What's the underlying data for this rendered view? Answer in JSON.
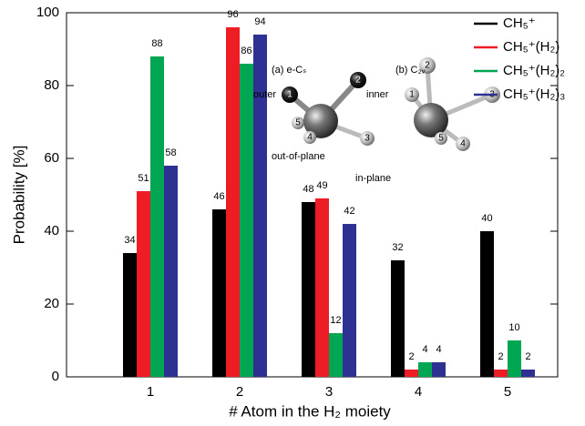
{
  "chart_data": {
    "type": "bar",
    "x_label": "# Atom in the H₂ moiety",
    "y_label": "Probability [%]",
    "categories": [
      "1",
      "2",
      "3",
      "4",
      "5"
    ],
    "series": [
      {
        "name": "CH₅⁺",
        "color": "#000000",
        "values": [
          34,
          46,
          48,
          32,
          40
        ]
      },
      {
        "name": "CH₅⁺(H₂)",
        "color": "#ee1c25",
        "values": [
          51,
          96,
          49,
          2,
          2
        ]
      },
      {
        "name": "CH₅⁺(H₂)₂",
        "color": "#00a651",
        "values": [
          88,
          86,
          12,
          4,
          10
        ]
      },
      {
        "name": "CH₅⁺(H₂)₃",
        "color": "#2e3192",
        "values": [
          58,
          94,
          42,
          4,
          2
        ]
      }
    ],
    "ylim": [
      0,
      100
    ],
    "yticks": [
      0,
      20,
      40,
      60,
      80,
      100
    ],
    "legend": "upper right",
    "inset_a_title": "(a) e-Cₛ",
    "inset_b_title": "(b) C₂ᵥ",
    "annotations": [
      "outer",
      "inner",
      "out-of-plane",
      "in-plane"
    ],
    "atom_labels": [
      "1",
      "2",
      "3",
      "4",
      "5"
    ]
  }
}
